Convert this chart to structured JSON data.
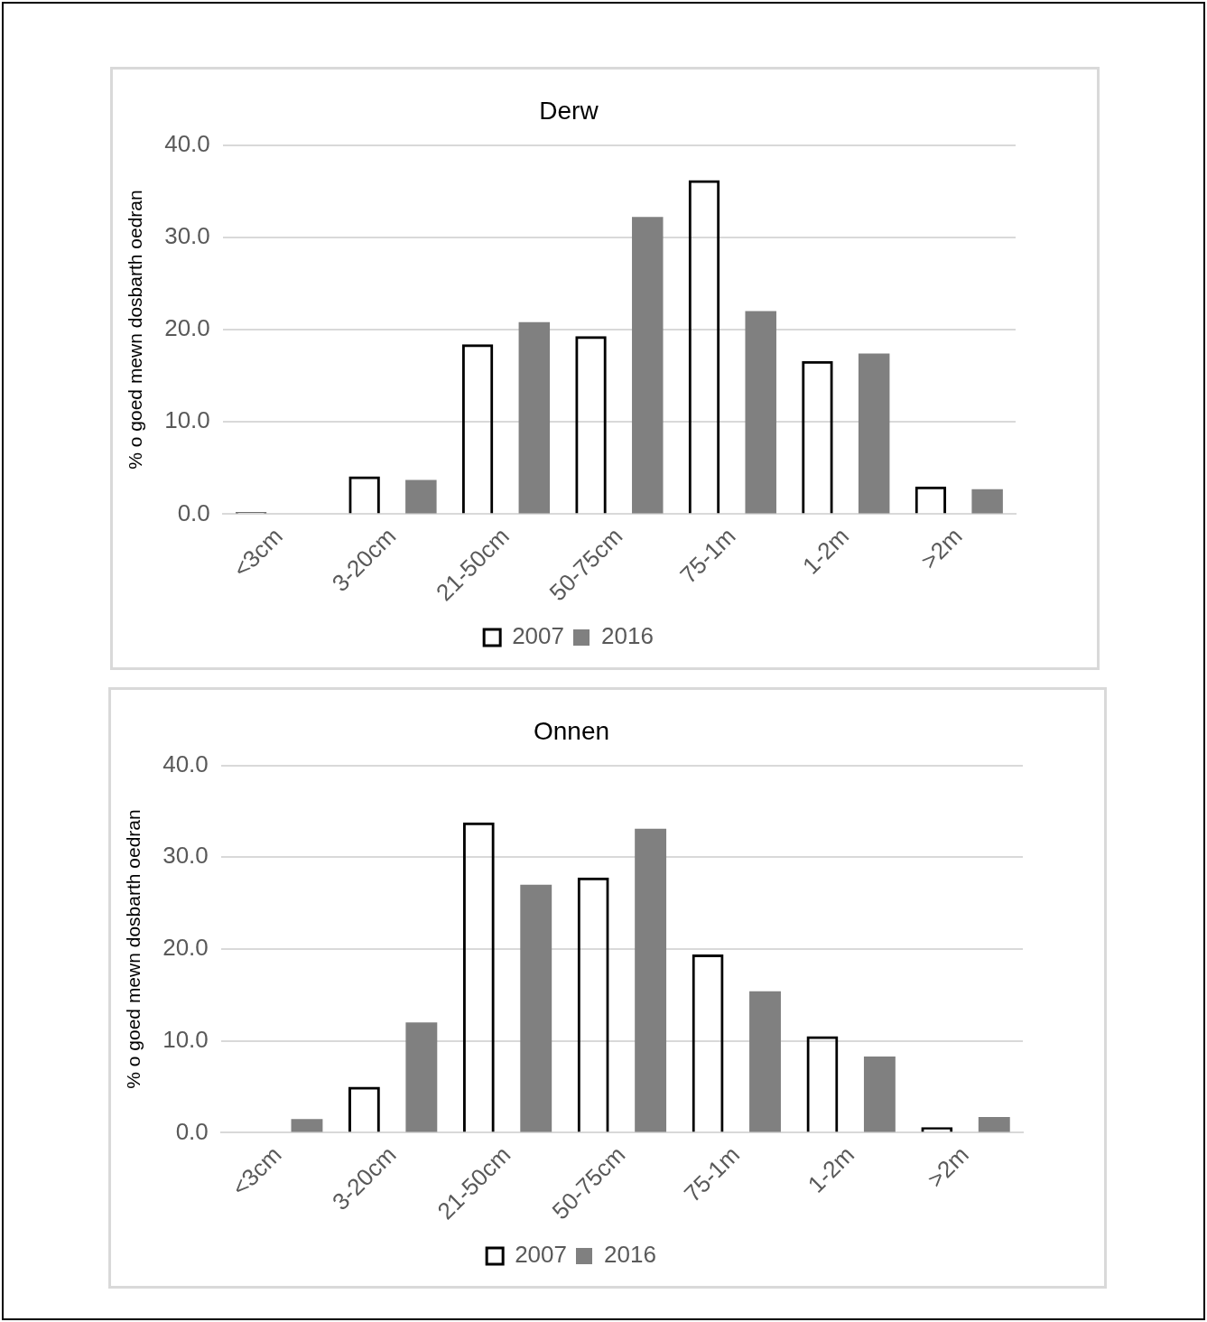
{
  "chart_data": [
    {
      "type": "bar",
      "title": "Derw",
      "ylabel": "% o goed mewn dosbarth oedran",
      "categories": [
        "<3cm",
        "3-20cm",
        "21-50cm",
        "50-75cm",
        "75-1m",
        "1-2m",
        ">2m"
      ],
      "series": [
        {
          "name": "2007",
          "color": "#000000",
          "values": [
            0.2,
            4.1,
            18.4,
            19.3,
            36.2,
            16.6,
            3.0
          ]
        },
        {
          "name": "2016",
          "color": "#808080",
          "values": [
            null,
            3.7,
            20.8,
            32.2,
            22.0,
            17.4,
            2.7
          ]
        }
      ],
      "ylim": [
        0,
        40
      ],
      "yticks": [
        {
          "value": 0,
          "label": "0.0"
        },
        {
          "value": 10,
          "label": "10.0"
        },
        {
          "value": 20,
          "label": "20.0"
        },
        {
          "value": 30,
          "label": "30.0"
        },
        {
          "value": 40,
          "label": "40.0"
        }
      ],
      "grid": "y",
      "legend": "bottom"
    },
    {
      "type": "bar",
      "title": "Onnen",
      "ylabel": "% o goed mewn dosbarth oedran",
      "categories": [
        "<3cm",
        "3-20cm",
        "21-50cm",
        "50-75cm",
        "75-1m",
        "1-2m",
        ">2m"
      ],
      "series": [
        {
          "name": "2007",
          "color": "#000000",
          "values": [
            null,
            5.0,
            33.8,
            27.8,
            19.4,
            10.5,
            0.6
          ]
        },
        {
          "name": "2016",
          "color": "#808080",
          "values": [
            1.5,
            12.0,
            27.0,
            33.1,
            15.4,
            8.3,
            1.7
          ]
        }
      ],
      "ylim": [
        0,
        40
      ],
      "yticks": [
        {
          "value": 0,
          "label": "0.0"
        },
        {
          "value": 10,
          "label": "10.0"
        },
        {
          "value": 20,
          "label": "20.0"
        },
        {
          "value": 30,
          "label": "30.0"
        },
        {
          "value": 40,
          "label": "40.0"
        }
      ],
      "grid": "y",
      "legend": "bottom"
    }
  ]
}
